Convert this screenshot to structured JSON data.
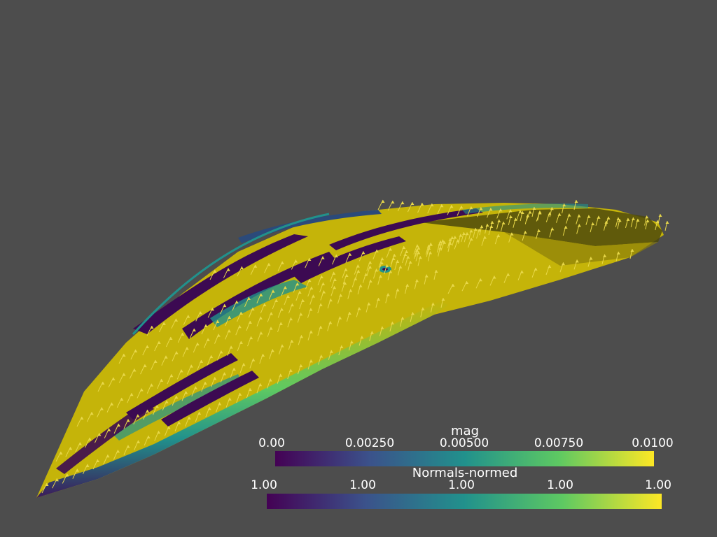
{
  "scene": {
    "background": "#4d4d4d",
    "surface_color": "#c5b409",
    "glyph_color": "#e8d84a",
    "colormap": [
      "#440154",
      "#3b528b",
      "#21918c",
      "#5ec962",
      "#fde725"
    ]
  },
  "scalar_bars": [
    {
      "title": "mag",
      "ticks": [
        "0.00",
        "0.00250",
        "0.00500",
        "0.00750",
        "0.0100"
      ]
    },
    {
      "title": "Normals-normed",
      "ticks": [
        "1.00",
        "1.00",
        "1.00",
        "1.00",
        "1.00"
      ]
    }
  ]
}
